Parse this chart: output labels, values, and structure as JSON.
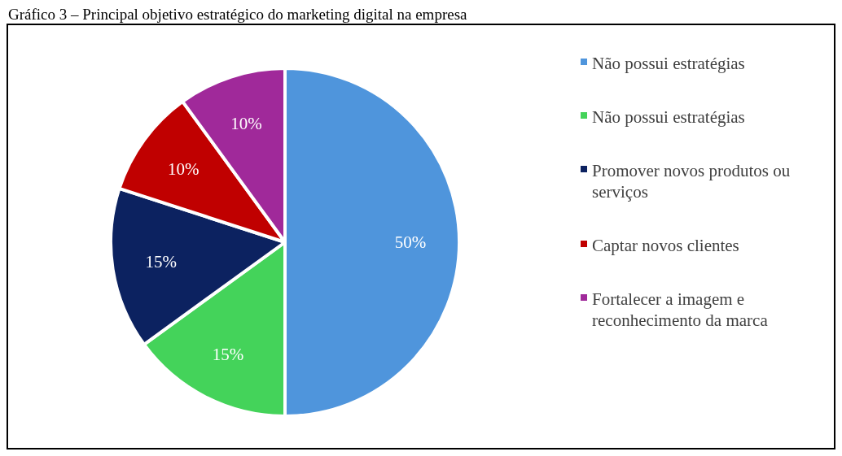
{
  "chart_data": {
    "type": "pie",
    "title": "Gráfico 3 – Principal objetivo estratégico do marketing digital na empresa",
    "categories": [
      "Não possui estratégias",
      "Não possui estratégias",
      "Promover novos produtos ou serviços",
      "Captar novos clientes",
      "Fortalecer a imagem e reconhecimento da marca"
    ],
    "values": [
      50,
      15,
      15,
      10,
      10
    ],
    "colors": [
      "#4f95dc",
      "#44d35a",
      "#0c2260",
      "#c00000",
      "#a0299a"
    ],
    "value_labels": [
      "50%",
      "15%",
      "15%",
      "10%",
      "10%"
    ],
    "legend": "right"
  }
}
